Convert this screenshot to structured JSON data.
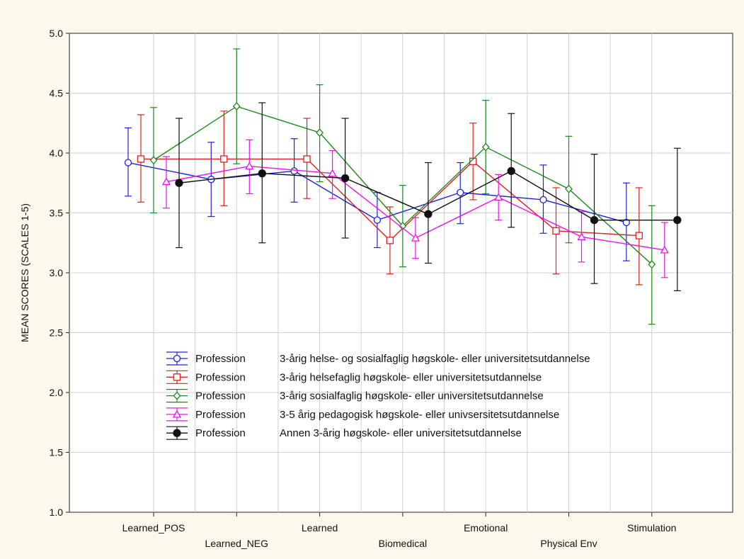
{
  "chart_data": {
    "type": "line",
    "title": "",
    "xlabel": "",
    "ylabel": "MEAN SCORES (SCALES 1-5)",
    "ylim": [
      1.0,
      5.0
    ],
    "yticks": [
      "1.0",
      "1.5",
      "2.0",
      "2.5",
      "3.0",
      "3.5",
      "4.0",
      "4.5",
      "5.0"
    ],
    "categories": [
      "Learned_POS",
      "Learned_NEG",
      "Learned",
      "Biomedical",
      "Emotional",
      "Physical Env",
      "Stimulation"
    ],
    "grid": true,
    "legend_position": "bottom-left",
    "error_bars": true,
    "series": [
      {
        "legend_key": "Profession",
        "name": "3-årig helse- og sosialfaglig høgskole- eller universitetsutdannelse",
        "color": "#1f1fe0",
        "marker": "circle-open",
        "values": [
          3.92,
          3.78,
          3.85,
          3.44,
          3.67,
          3.61,
          3.42
        ],
        "lower": [
          3.64,
          3.47,
          3.59,
          3.21,
          3.41,
          3.33,
          3.1
        ],
        "upper": [
          4.21,
          4.09,
          4.12,
          3.67,
          3.92,
          3.9,
          3.75
        ]
      },
      {
        "legend_key": "Profession",
        "name": "3-årig helsefaglig høgskole- eller universitetsutdannelse",
        "color": "#e02020",
        "marker": "square-open",
        "values": [
          3.95,
          3.95,
          3.95,
          3.27,
          3.93,
          3.35,
          3.31
        ],
        "lower": [
          3.59,
          3.56,
          3.62,
          2.99,
          3.61,
          2.99,
          2.9
        ],
        "upper": [
          4.32,
          4.35,
          4.29,
          3.55,
          4.25,
          3.71,
          3.71
        ]
      },
      {
        "legend_key": "Profession",
        "name": "3-årig sosialfaglig høgskole- eller universitetsutdannelse",
        "color": "#1a8a1a",
        "marker": "diamond-open",
        "values": [
          3.94,
          4.39,
          4.17,
          3.39,
          4.05,
          3.7,
          3.07
        ],
        "lower": [
          3.5,
          3.91,
          3.76,
          3.05,
          3.66,
          3.25,
          2.57
        ],
        "upper": [
          4.38,
          4.87,
          4.57,
          3.73,
          4.44,
          4.14,
          3.56
        ]
      },
      {
        "legend_key": "Profession",
        "name": "3-5 årig pedagogisk høgskole- eller univsersitetsutdannelse",
        "color": "#ee11ee",
        "marker": "triangle-open",
        "values": [
          3.76,
          3.89,
          3.83,
          3.29,
          3.63,
          3.3,
          3.19
        ],
        "lower": [
          3.54,
          3.66,
          3.62,
          3.12,
          3.44,
          3.09,
          2.96
        ],
        "upper": [
          3.97,
          4.11,
          4.02,
          3.46,
          3.82,
          3.51,
          3.42
        ]
      },
      {
        "legend_key": "Profession",
        "name": "Annen 3-årig høgskole- eller universitetsutdannelse",
        "color": "#111111",
        "marker": "circle-filled",
        "values": [
          3.75,
          3.83,
          3.79,
          3.49,
          3.85,
          3.44,
          3.44
        ],
        "lower": [
          3.21,
          3.25,
          3.29,
          3.08,
          3.38,
          2.91,
          2.85
        ],
        "upper": [
          4.29,
          4.42,
          4.29,
          3.92,
          4.33,
          3.99,
          4.04
        ]
      }
    ]
  }
}
